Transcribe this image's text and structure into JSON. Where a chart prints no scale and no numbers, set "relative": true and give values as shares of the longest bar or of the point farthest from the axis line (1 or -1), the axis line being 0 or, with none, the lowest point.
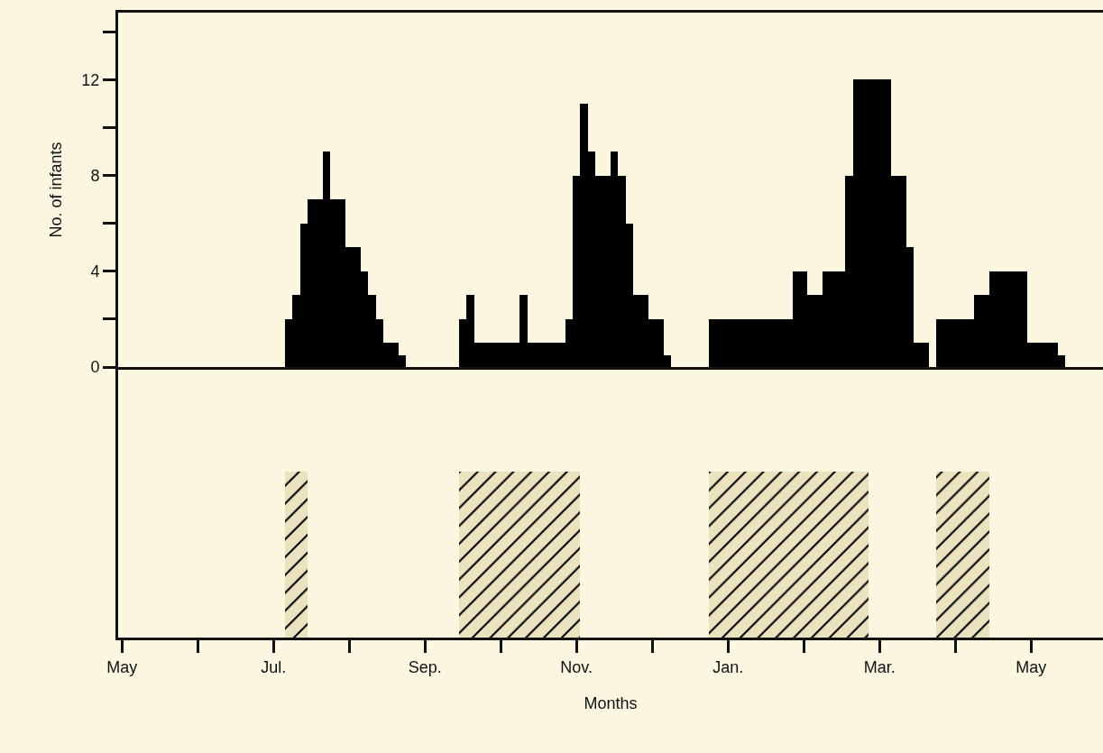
{
  "chart_data": [
    {
      "type": "bar",
      "ylabel": "No. of infants",
      "categories": [
        null,
        null,
        null,
        null,
        null,
        null,
        null,
        null,
        null,
        null,
        null,
        null,
        null,
        null,
        null,
        null,
        null,
        null,
        null,
        null,
        null,
        null,
        null,
        null,
        null,
        null,
        null,
        null,
        null,
        null,
        null,
        null,
        null,
        null,
        null,
        null,
        null,
        null,
        null,
        null,
        null,
        null,
        null,
        null,
        null,
        null,
        null,
        null,
        null,
        null,
        null,
        null,
        null,
        null,
        null,
        null,
        null,
        null,
        null,
        null,
        null,
        null,
        null,
        null,
        null,
        null,
        null,
        null,
        null,
        null,
        null,
        null,
        null,
        null,
        null,
        null,
        null,
        null,
        null,
        null,
        null,
        null,
        null,
        null,
        null,
        null,
        null,
        null,
        null,
        null,
        null,
        null,
        null,
        null,
        null,
        null,
        null,
        null,
        null,
        null,
        null,
        null,
        null,
        null,
        null,
        null,
        null,
        null,
        null,
        null,
        null,
        null,
        null,
        null,
        null,
        null,
        null,
        null,
        null,
        null,
        null,
        null,
        null,
        null,
        null,
        null,
        null,
        null,
        null,
        null
      ],
      "values": [
        0,
        0,
        0,
        0,
        0,
        0,
        0,
        0,
        0,
        0,
        0,
        0,
        0,
        0,
        0,
        0,
        0,
        0,
        0,
        0,
        0,
        0,
        2,
        3,
        6,
        7,
        7,
        9,
        7,
        7,
        5,
        5,
        4,
        3,
        2,
        1,
        1,
        0.5,
        0,
        0,
        0,
        0,
        0,
        0,
        0,
        2,
        3,
        1,
        1,
        1,
        1,
        1,
        1,
        3,
        1,
        1,
        1,
        1,
        1,
        2,
        8,
        11,
        9,
        8,
        8,
        9,
        8,
        6,
        3,
        3,
        2,
        2,
        0.5,
        0,
        0,
        0,
        0,
        0,
        2,
        2,
        2,
        2,
        2,
        2,
        2,
        2,
        2,
        2,
        2,
        4,
        4,
        3,
        3,
        4,
        4,
        4,
        8,
        12,
        12,
        12,
        12,
        12,
        8,
        8,
        5,
        1,
        1,
        0,
        2,
        2,
        2,
        2,
        2,
        3,
        3,
        4,
        4,
        4,
        4,
        4,
        1,
        1,
        1,
        1,
        0.5,
        0,
        0,
        0,
        0,
        0
      ],
      "color": "#000000",
      "ylim": [
        0,
        14.8
      ],
      "yticks": [
        0,
        {
          "value": 2,
          "label": null
        },
        4,
        {
          "value": 6,
          "label": null
        },
        8,
        {
          "value": 10,
          "label": null
        },
        12,
        {
          "value": 14,
          "label": null
        }
      ],
      "tick_labels": "y"
    },
    {
      "type": "bar",
      "relative": true,
      "xlabel": "Months",
      "categories": [
        "May",
        null,
        null,
        null,
        null,
        null,
        null,
        null,
        null,
        null,
        null,
        null,
        null,
        null,
        null,
        null,
        null,
        null,
        null,
        null,
        "Jul.",
        null,
        null,
        null,
        null,
        null,
        null,
        null,
        null,
        null,
        null,
        null,
        null,
        null,
        null,
        null,
        null,
        null,
        null,
        null,
        "Sep.",
        null,
        null,
        null,
        null,
        null,
        null,
        null,
        null,
        null,
        null,
        null,
        null,
        null,
        null,
        null,
        null,
        null,
        null,
        null,
        "Nov.",
        null,
        null,
        null,
        null,
        null,
        null,
        null,
        null,
        null,
        null,
        null,
        null,
        null,
        null,
        null,
        null,
        null,
        null,
        null,
        "Jan.",
        null,
        null,
        null,
        null,
        null,
        null,
        null,
        null,
        null,
        null,
        null,
        null,
        null,
        null,
        null,
        null,
        null,
        null,
        null,
        "Mar.",
        null,
        null,
        null,
        null,
        null,
        null,
        null,
        null,
        null,
        null,
        null,
        null,
        null,
        null,
        null,
        null,
        null,
        null,
        null,
        "May",
        null,
        null,
        null,
        null,
        null,
        null,
        null,
        null,
        null
      ],
      "values": [
        null,
        null,
        null,
        null,
        null,
        null,
        null,
        null,
        null,
        null,
        null,
        null,
        null,
        null,
        null,
        null,
        null,
        null,
        null,
        null,
        null,
        null,
        1,
        1,
        1,
        null,
        null,
        null,
        null,
        null,
        null,
        null,
        null,
        null,
        null,
        null,
        null,
        null,
        null,
        null,
        null,
        null,
        null,
        null,
        null,
        1,
        1,
        1,
        1,
        1,
        1,
        1,
        1,
        1,
        1,
        1,
        1,
        1,
        1,
        1,
        1,
        null,
        null,
        null,
        null,
        null,
        null,
        null,
        null,
        null,
        null,
        null,
        null,
        null,
        null,
        null,
        null,
        null,
        1,
        1,
        1,
        1,
        1,
        1,
        1,
        1,
        1,
        1,
        1,
        1,
        1,
        1,
        1,
        1,
        1,
        1,
        1,
        1,
        1,
        null,
        null,
        null,
        null,
        null,
        null,
        null,
        null,
        null,
        1,
        1,
        1,
        1,
        1,
        1,
        1,
        null,
        null,
        null,
        null,
        null,
        null,
        null,
        null,
        null,
        null,
        null,
        null,
        null,
        null,
        null
      ],
      "color": "#000000",
      "tick_labels": "x"
    }
  ]
}
